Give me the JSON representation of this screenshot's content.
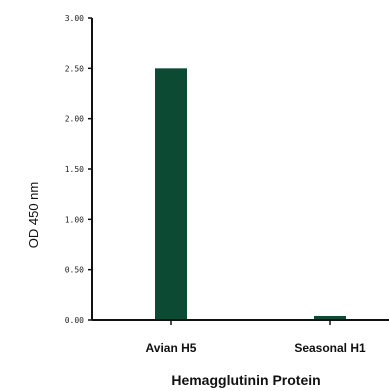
{
  "chart_data": {
    "type": "bar",
    "categories": [
      "Avian H5",
      "Seasonal H1"
    ],
    "values": [
      2.5,
      0.04
    ],
    "ylabel": "OD 450 nm",
    "xlabel": "Hemagglutinin Protein",
    "ylim": [
      0,
      3.0
    ],
    "yticks": [
      "3.00",
      "2.50",
      "2.00",
      "1.50",
      "1.00",
      "0.50",
      "0.00"
    ],
    "ytick_values": [
      3.0,
      2.5,
      2.0,
      1.5,
      1.0,
      0.5,
      0.0
    ],
    "grid": false,
    "colors": {
      "bar": "#0d4a34",
      "axis": "#111111"
    }
  }
}
